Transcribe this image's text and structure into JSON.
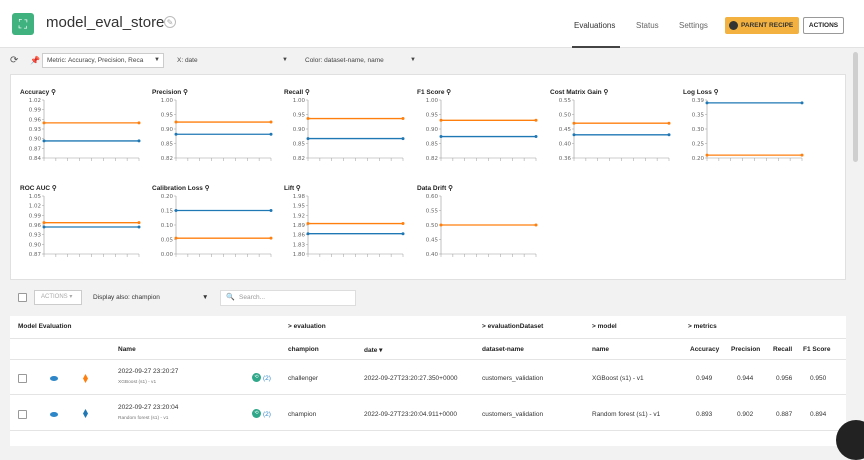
{
  "header": {
    "title": "model_eval_store",
    "tabs": [
      "Evaluations",
      "Status",
      "Settings"
    ],
    "parent_recipe": "PARENT RECIPE",
    "actions": "ACTIONS"
  },
  "toolbar": {
    "metric_select": "Metric: Accuracy, Precision, Reca",
    "x_select": "X: date",
    "color_select": "Color: dataset-name, name"
  },
  "colors": {
    "series_a": "#1f77b4",
    "series_b": "#ff7f0e",
    "accent": "#f3b23f",
    "brand": "#3fb27f"
  },
  "chart_data": [
    {
      "type": "line",
      "title": "Accuracy",
      "yticks": [
        "1.02",
        "0.99",
        "0.96",
        "0.93",
        "0.90",
        "0.87",
        "0.84"
      ],
      "ylim": [
        0.84,
        1.02
      ],
      "series": [
        {
          "values": [
            0.893,
            0.893
          ]
        },
        {
          "values": [
            0.949,
            0.949
          ]
        }
      ]
    },
    {
      "type": "line",
      "title": "Precision",
      "yticks": [
        "1.00",
        "0.95",
        "0.90",
        "0.85",
        "0.82"
      ],
      "ylim": [
        0.82,
        1.02
      ],
      "series": [
        {
          "values": [
            0.902,
            0.902
          ]
        },
        {
          "values": [
            0.944,
            0.944
          ]
        }
      ]
    },
    {
      "type": "line",
      "title": "Recall",
      "yticks": [
        "1.00",
        "0.95",
        "0.90",
        "0.85",
        "0.82"
      ],
      "ylim": [
        0.82,
        1.02
      ],
      "series": [
        {
          "values": [
            0.887,
            0.887
          ]
        },
        {
          "values": [
            0.956,
            0.956
          ]
        }
      ]
    },
    {
      "type": "line",
      "title": "F1 Score",
      "yticks": [
        "1.00",
        "0.95",
        "0.90",
        "0.85",
        "0.82"
      ],
      "ylim": [
        0.82,
        1.02
      ],
      "series": [
        {
          "values": [
            0.894,
            0.894
          ]
        },
        {
          "values": [
            0.95,
            0.95
          ]
        }
      ]
    },
    {
      "type": "line",
      "title": "Cost Matrix Gain",
      "yticks": [
        "0.55",
        "0.50",
        "0.45",
        "0.40",
        "0.36"
      ],
      "ylim": [
        0.36,
        0.56
      ],
      "series": [
        {
          "values": [
            0.44,
            0.44
          ]
        },
        {
          "values": [
            0.48,
            0.48
          ]
        }
      ]
    },
    {
      "type": "line",
      "title": "Log Loss",
      "yticks": [
        "0.39",
        "0.35",
        "0.30",
        "0.25",
        "0.20"
      ],
      "ylim": [
        0.19,
        0.39
      ],
      "series": [
        {
          "values": [
            0.38,
            0.38
          ]
        },
        {
          "values": [
            0.2,
            0.2
          ]
        }
      ]
    },
    {
      "type": "line",
      "title": "ROC AUC",
      "yticks": [
        "1.05",
        "1.02",
        "0.99",
        "0.96",
        "0.93",
        "0.90",
        "0.87"
      ],
      "ylim": [
        0.86,
        1.06
      ],
      "series": [
        {
          "values": [
            0.953,
            0.953
          ]
        },
        {
          "values": [
            0.968,
            0.968
          ]
        }
      ]
    },
    {
      "type": "line",
      "title": "Calibration Loss",
      "yticks": [
        "0.20",
        "0.15",
        "0.10",
        "0.05",
        "0.00"
      ],
      "ylim": [
        -0.01,
        0.21
      ],
      "series": [
        {
          "values": [
            0.155,
            0.155
          ]
        },
        {
          "values": [
            0.05,
            0.05
          ]
        }
      ]
    },
    {
      "type": "line",
      "title": "Lift",
      "yticks": [
        "1.98",
        "1.95",
        "1.92",
        "1.89",
        "1.86",
        "1.83",
        "1.80"
      ],
      "ylim": [
        1.79,
        1.99
      ],
      "series": [
        {
          "values": [
            1.86,
            1.86
          ]
        },
        {
          "values": [
            1.895,
            1.895
          ]
        }
      ]
    },
    {
      "type": "line",
      "title": "Data Drift",
      "yticks": [
        "0.60",
        "0.55",
        "0.50",
        "0.45",
        "0.40"
      ],
      "ylim": [
        0.39,
        0.61
      ],
      "series": [
        {
          "values": [
            0.5,
            0.5
          ]
        }
      ]
    }
  ],
  "filter": {
    "actions": "ACTIONS",
    "display_label": "Display also: champion",
    "search_placeholder": "Search..."
  },
  "table": {
    "group_headers": [
      "Model Evaluation",
      "> evaluation",
      "> evaluationDataset",
      "> model",
      "> metrics"
    ],
    "columns": [
      "Name",
      "champion",
      "date ▾",
      "dataset-name",
      "name",
      "Accuracy",
      "Precision",
      "Recall",
      "F1 Score"
    ],
    "rows": [
      {
        "name": "2022-09-27 23:20:27",
        "sub": "XGBoost (s1) - v1",
        "badge": "(2)",
        "champion": "challenger",
        "date": "2022-09-27T23:20:27.350+0000",
        "dataset": "customers_validation",
        "model": "XGBoost (s1) - v1",
        "accuracy": "0.949",
        "precision": "0.944",
        "recall": "0.956",
        "f1": "0.950"
      },
      {
        "name": "2022-09-27 23:20:04",
        "sub": "Random forest (s1) - v1",
        "badge": "(2)",
        "champion": "champion",
        "date": "2022-09-27T23:20:04.911+0000",
        "dataset": "customers_validation",
        "model": "Random forest (s1) - v1",
        "accuracy": "0.893",
        "precision": "0.902",
        "recall": "0.887",
        "f1": "0.894"
      }
    ]
  }
}
